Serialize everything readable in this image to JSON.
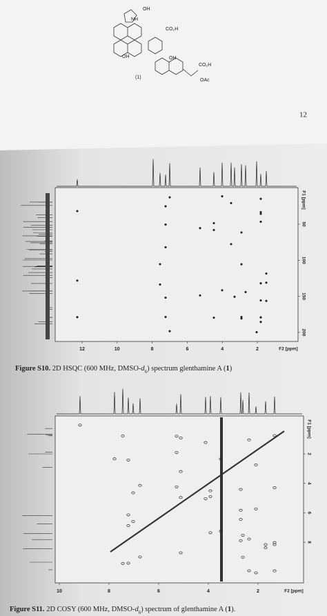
{
  "page_number": "12",
  "structure": {
    "compound_label": "(1)",
    "groups": [
      "OH",
      "NH",
      "CO₂H",
      "OH",
      "OH",
      "CO₂H",
      "OAc"
    ]
  },
  "figures": [
    {
      "f1_label": "F1 [ppm]",
      "f1_ticks": [
        "50",
        "100",
        "150",
        "200"
      ],
      "f2_label": "F2 [ppm]",
      "f2_ticks": [
        "12",
        "10",
        "8",
        "6",
        "4",
        "2"
      ],
      "caption": {
        "label": "Figure S10.",
        "parts": [
          " 2D HSQC (600 MHz, DMSO-",
          "d",
          "6",
          ") spectrum glenthamine A (",
          "1",
          ")"
        ]
      }
    },
    {
      "f1_label": "F1 [ppm]",
      "f1_ticks": [
        "2",
        "4",
        "6",
        "8"
      ],
      "f2_label": "F2 [ppm]",
      "f2_ticks": [
        "10",
        "8",
        "6",
        "4",
        "2"
      ],
      "caption": {
        "label": "Figure S11.",
        "parts": [
          " 2D COSY (600 MHz, DMSO-",
          "d",
          "6",
          ") spectrum of glenthamine A (",
          "1",
          ")."
        ]
      }
    }
  ]
}
